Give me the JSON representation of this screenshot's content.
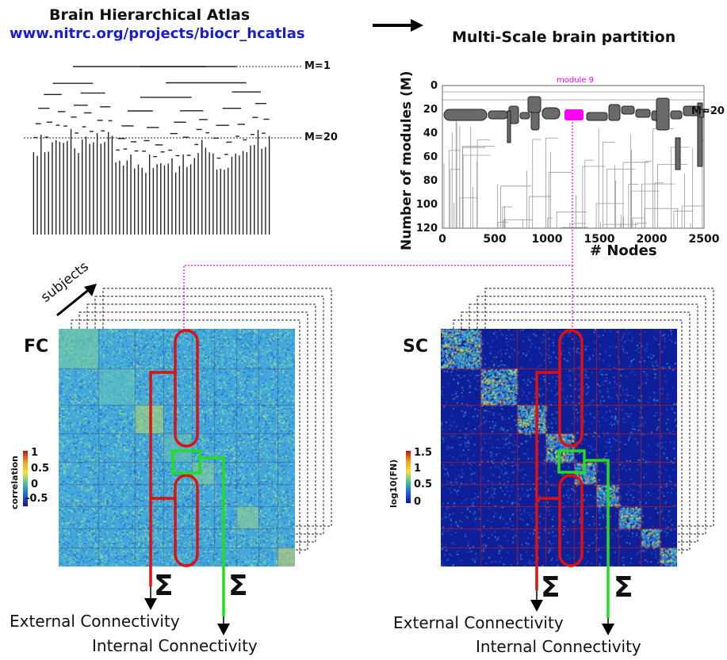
{
  "atlas": {
    "title": "Brain Hierarchical Atlas",
    "url": "www.nitrc.org/projects/biocr_hcatlas",
    "level_m1": "M=1",
    "level_m20": "M=20"
  },
  "partition": {
    "title": "Multi-Scale brain partition",
    "ylabel": "Number of modules (M)",
    "xlabel": "# Nodes",
    "x_ticks": [
      "0",
      "500",
      "1000",
      "1500",
      "2000",
      "2500"
    ],
    "y_ticks": [
      "0",
      "20",
      "40",
      "60",
      "80",
      "100",
      "120"
    ],
    "module_label": "module 9",
    "level_label": "M=20",
    "highlight_color": "#ff00ff"
  },
  "subjects_label": "subjects",
  "fc": {
    "label": "FC",
    "colorbar_title": "correlation",
    "colorbar_ticks": [
      "1",
      "0.5",
      "0",
      "-0.5"
    ]
  },
  "sc": {
    "label": "SC",
    "colorbar_title": "log10(FN)",
    "colorbar_ticks": [
      "1.5",
      "1",
      "0.5",
      "0"
    ]
  },
  "symbols": {
    "sum": "Σ"
  },
  "outputs": {
    "external": "External Connectivity",
    "internal": "Internal Connectivity"
  },
  "colors": {
    "external_arrow": "#e01010",
    "internal_arrow": "#22dd22",
    "link_line": "#ff00ff",
    "url": "#1a20c8"
  }
}
